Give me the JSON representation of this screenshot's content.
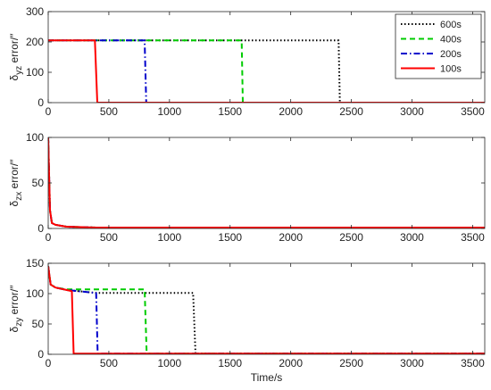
{
  "chart_data": [
    {
      "type": "line",
      "xlabel": "",
      "ylabel": [
        "δ",
        "yz",
        " error/″"
      ],
      "xlim": [
        0,
        3600
      ],
      "ylim": [
        0,
        300
      ],
      "xticks": [
        "0",
        "500",
        "1000",
        "1500",
        "2000",
        "2500",
        "3000",
        "3500"
      ],
      "yticks": [
        "0",
        "100",
        "200",
        "300"
      ],
      "grid": false,
      "legend": {
        "placement": "top-right",
        "entries": [
          {
            "name": "600s",
            "color": "#000000",
            "style": "dotted"
          },
          {
            "name": "400s",
            "color": "#00cc00",
            "style": "dashed"
          },
          {
            "name": "200s",
            "color": "#0000cc",
            "style": "dashdot"
          },
          {
            "name": "100s",
            "color": "#ff0000",
            "style": "solid"
          }
        ]
      },
      "series": [
        {
          "name": "600s",
          "color": "#000000",
          "style": "dotted",
          "x": [
            0,
            2395,
            2405,
            3600
          ],
          "y": [
            205,
            205,
            0,
            0
          ]
        },
        {
          "name": "400s",
          "color": "#00cc00",
          "style": "dashed",
          "x": [
            0,
            1595,
            1605,
            3600
          ],
          "y": [
            205,
            205,
            0,
            0
          ]
        },
        {
          "name": "200s",
          "color": "#0000cc",
          "style": "dashdot",
          "x": [
            0,
            795,
            808,
            3600
          ],
          "y": [
            205,
            205,
            0,
            0
          ]
        },
        {
          "name": "100s",
          "color": "#ff0000",
          "style": "solid",
          "x": [
            0,
            385,
            405,
            3600
          ],
          "y": [
            205,
            205,
            0,
            0
          ]
        }
      ]
    },
    {
      "type": "line",
      "xlabel": "",
      "ylabel": [
        "δ",
        "zx",
        " error/″"
      ],
      "xlim": [
        0,
        3600
      ],
      "ylim": [
        0,
        100
      ],
      "xticks": [
        "0",
        "500",
        "1000",
        "1500",
        "2000",
        "2500",
        "3000",
        "3500"
      ],
      "yticks": [
        "0",
        "50",
        "100"
      ],
      "grid": false,
      "series": [
        {
          "name": "600s",
          "color": "#000000",
          "style": "dotted",
          "x": [
            0,
            5,
            15,
            30,
            60,
            150,
            400,
            3600
          ],
          "y": [
            100,
            70,
            20,
            6,
            4,
            2,
            1,
            1
          ]
        },
        {
          "name": "400s",
          "color": "#00cc00",
          "style": "dashed",
          "x": [
            0,
            5,
            15,
            30,
            60,
            150,
            400,
            3600
          ],
          "y": [
            100,
            70,
            20,
            6,
            4,
            2,
            1,
            1
          ]
        },
        {
          "name": "200s",
          "color": "#0000cc",
          "style": "dashdot",
          "x": [
            0,
            5,
            15,
            30,
            60,
            150,
            400,
            3600
          ],
          "y": [
            100,
            70,
            20,
            6,
            4,
            2,
            1,
            1
          ]
        },
        {
          "name": "100s",
          "color": "#ff0000",
          "style": "solid",
          "x": [
            0,
            5,
            15,
            30,
            60,
            150,
            400,
            3600
          ],
          "y": [
            100,
            70,
            20,
            6,
            4,
            2,
            1,
            1
          ]
        }
      ]
    },
    {
      "type": "line",
      "xlabel": "Time/s",
      "ylabel": [
        "δ",
        "zy",
        " error/″"
      ],
      "xlim": [
        0,
        3600
      ],
      "ylim": [
        0,
        150
      ],
      "xticks": [
        "0",
        "500",
        "1000",
        "1500",
        "2000",
        "2500",
        "3000",
        "3500"
      ],
      "yticks": [
        "0",
        "50",
        "100",
        "150"
      ],
      "grid": false,
      "series": [
        {
          "name": "600s",
          "color": "#000000",
          "style": "dotted",
          "x": [
            0,
            20,
            60,
            150,
            400,
            1195,
            1215,
            3600
          ],
          "y": [
            145,
            115,
            110,
            106,
            101,
            101,
            1,
            1
          ]
        },
        {
          "name": "400s",
          "color": "#00cc00",
          "style": "dashed",
          "x": [
            0,
            20,
            60,
            150,
            400,
            795,
            812,
            3600
          ],
          "y": [
            145,
            115,
            110,
            107,
            107,
            107,
            1,
            1
          ]
        },
        {
          "name": "200s",
          "color": "#0000cc",
          "style": "dashdot",
          "x": [
            0,
            20,
            60,
            150,
            395,
            408,
            3600
          ],
          "y": [
            145,
            115,
            110,
            106,
            101,
            1,
            1
          ]
        },
        {
          "name": "100s",
          "color": "#ff0000",
          "style": "solid",
          "x": [
            0,
            20,
            60,
            150,
            195,
            210,
            3600
          ],
          "y": [
            145,
            115,
            110,
            106,
            104,
            1,
            1
          ]
        }
      ]
    }
  ]
}
